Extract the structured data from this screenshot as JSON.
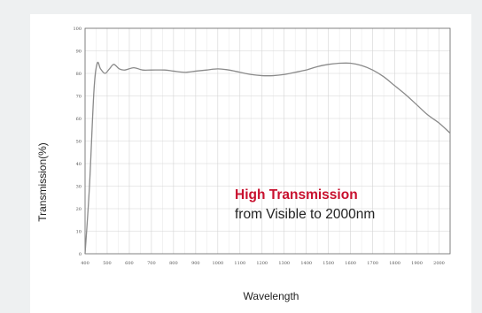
{
  "chart_data": {
    "type": "line",
    "title": "",
    "xlabel": "Wavelength",
    "ylabel": "Transmission(%)",
    "xlim": [
      400,
      2050
    ],
    "ylim": [
      0,
      100
    ],
    "x_ticks": [
      400,
      500,
      600,
      700,
      800,
      900,
      1000,
      1100,
      1200,
      1300,
      1400,
      1500,
      1600,
      1700,
      1800,
      1900,
      2000
    ],
    "y_ticks": [
      0,
      10,
      20,
      30,
      40,
      50,
      60,
      70,
      80,
      90,
      100
    ],
    "grid": true,
    "legend": "none",
    "series": [
      {
        "line_color": "#8a8a8a",
        "x": [
          400,
          420,
          440,
          455,
          470,
          490,
          510,
          530,
          555,
          580,
          620,
          660,
          700,
          760,
          800,
          850,
          900,
          950,
          1000,
          1050,
          1100,
          1150,
          1200,
          1250,
          1300,
          1350,
          1400,
          1450,
          1500,
          1550,
          1600,
          1650,
          1700,
          1750,
          1800,
          1850,
          1900,
          1950,
          2000,
          2050
        ],
        "y": [
          0,
          30,
          72,
          84.5,
          82,
          80,
          82,
          84,
          82,
          81.5,
          82.5,
          81.5,
          81.5,
          81.5,
          81,
          80.5,
          81,
          81.5,
          82,
          81.5,
          80.5,
          79.5,
          79,
          79,
          79.5,
          80.5,
          81.5,
          83,
          84,
          84.5,
          84.5,
          83.5,
          81.5,
          78.5,
          74.5,
          70.5,
          66,
          61.5,
          58,
          53.5
        ]
      }
    ],
    "annotation": {
      "highlight": "High Transmission",
      "text": "from Visible to 2000nm",
      "highlight_color": "#c8102e"
    }
  }
}
